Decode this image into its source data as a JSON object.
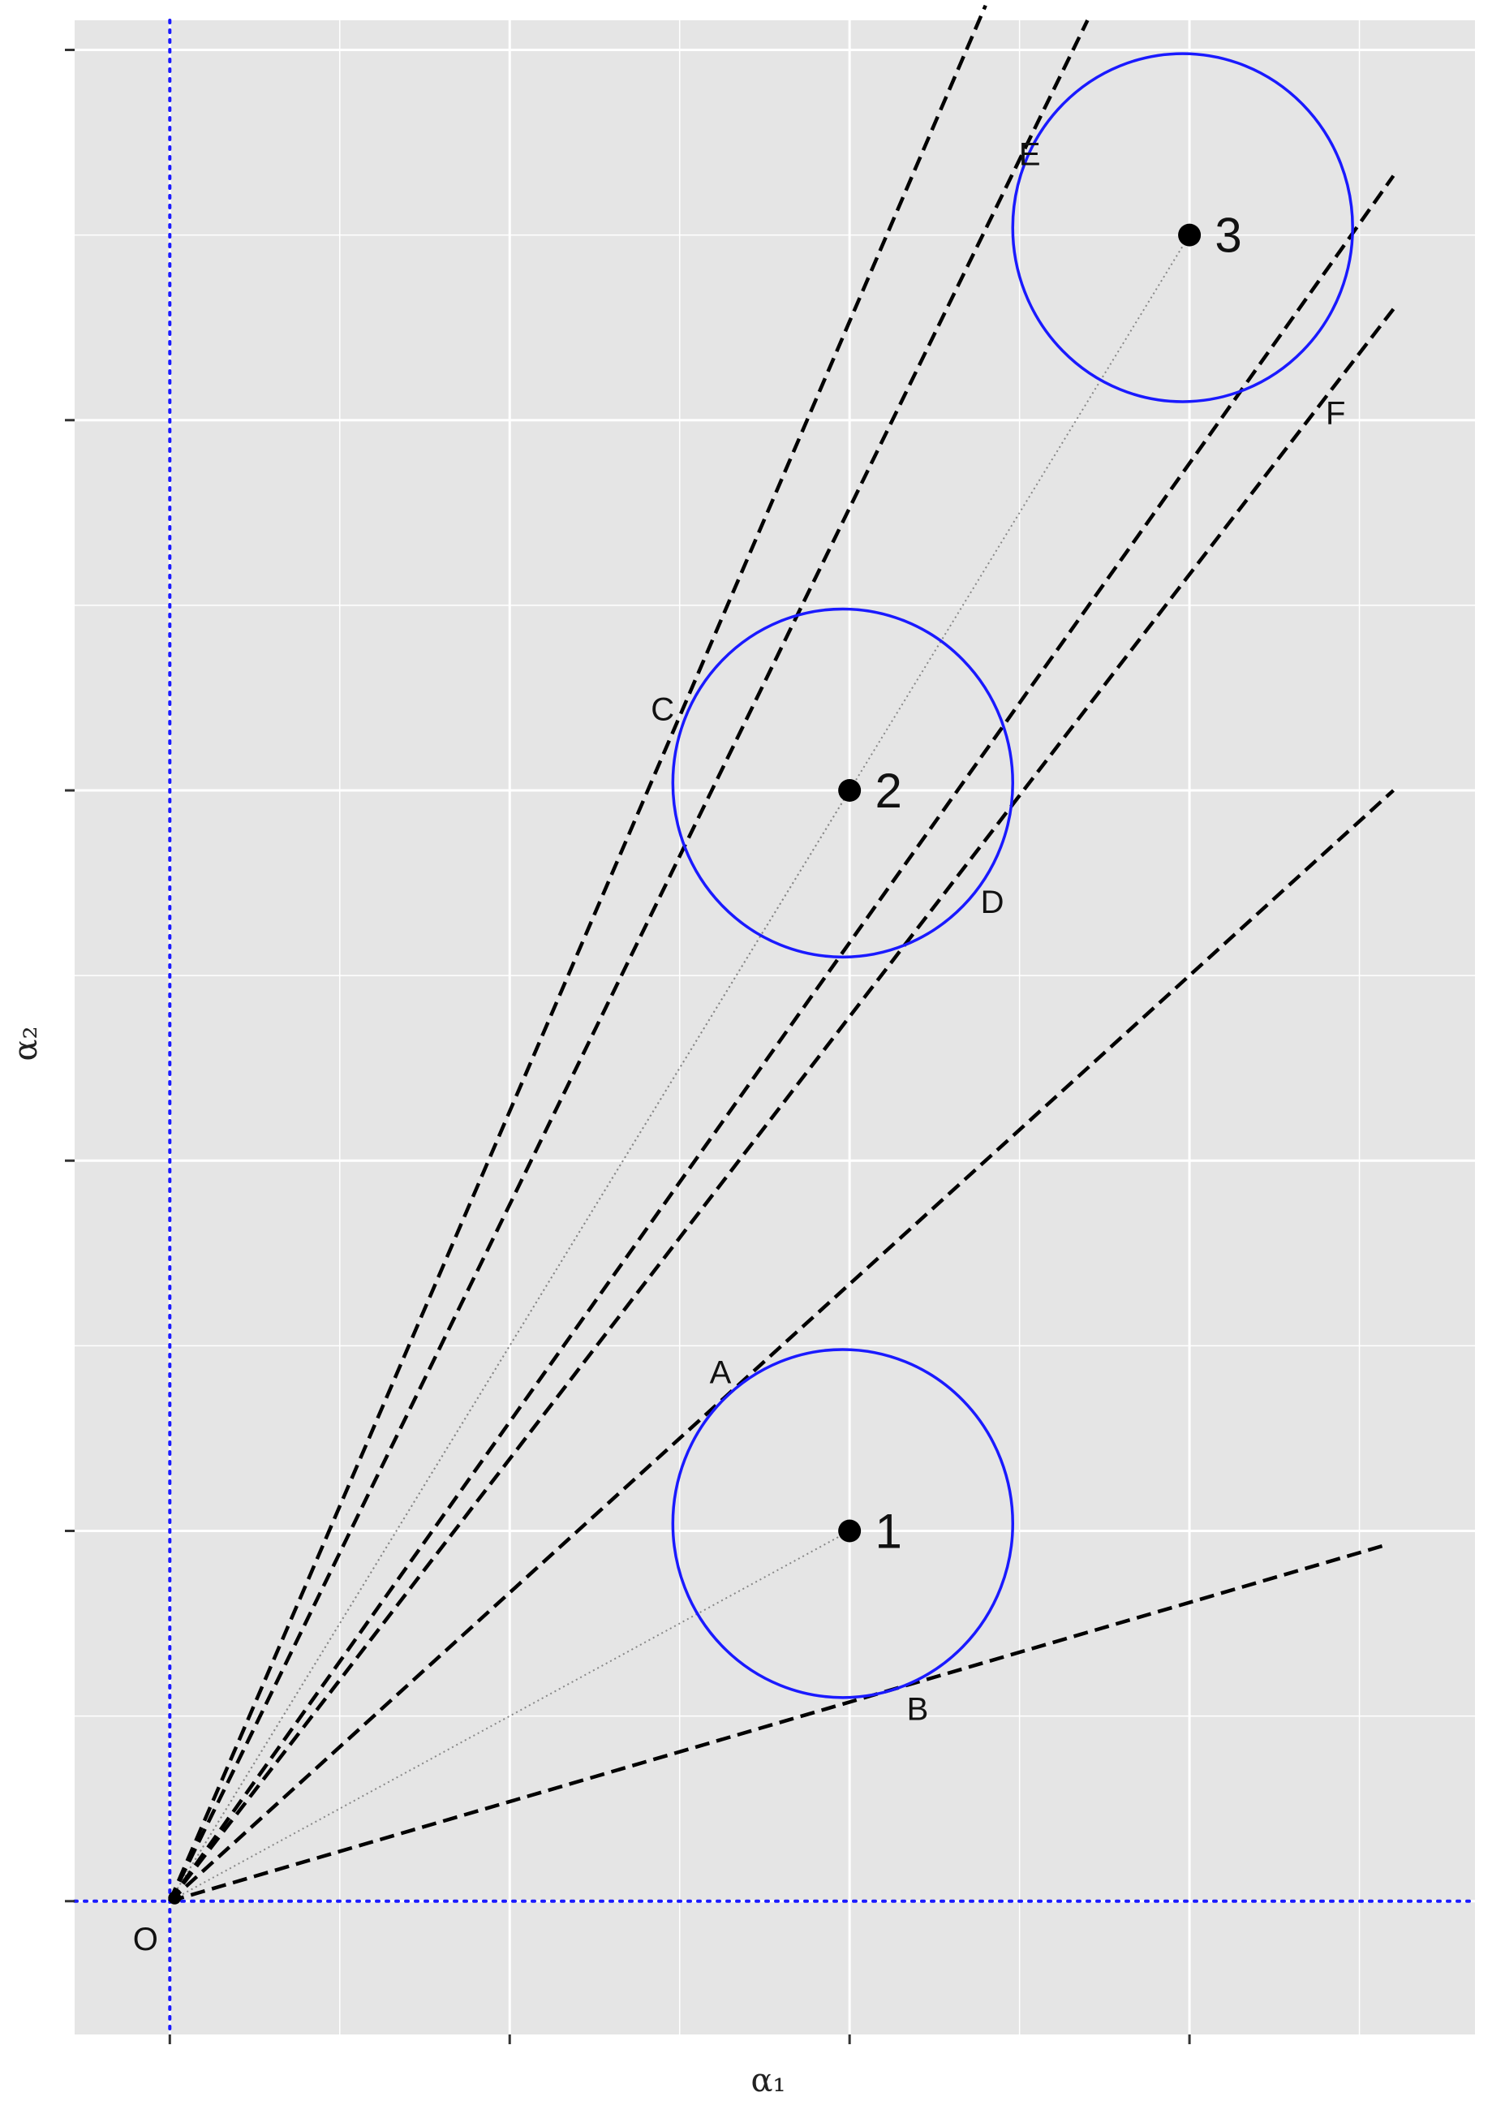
{
  "chart_data": {
    "type": "scatter",
    "title": "",
    "xlabel": "α₁",
    "ylabel": "α₂",
    "xlim": [
      -0.28,
      3.84
    ],
    "ylim": [
      -0.36,
      5.08
    ],
    "xticks": [
      0,
      1,
      2,
      3
    ],
    "yticks": [
      0,
      1,
      2,
      3,
      4,
      5
    ],
    "grid": true,
    "background": "#e5e5e5",
    "grid_color": "#ffffff",
    "origin": {
      "x": 0,
      "y": 0,
      "label": "O"
    },
    "reference_lines": [
      {
        "name": "x-axis",
        "orientation": "horizontal",
        "value": 0,
        "style": "dotted",
        "color": "#1a1aff"
      },
      {
        "name": "y-axis",
        "orientation": "vertical",
        "value": 0,
        "style": "dotted",
        "color": "#1a1aff"
      }
    ],
    "points": [
      {
        "label": "1",
        "x": 2.0,
        "y": 1.0
      },
      {
        "label": "2",
        "x": 2.0,
        "y": 3.0
      },
      {
        "label": "3",
        "x": 3.0,
        "y": 4.5
      }
    ],
    "circles": [
      {
        "cx": 1.98,
        "cy": 1.02,
        "rx": 0.5,
        "ry": 0.47,
        "color": "#1a1aff"
      },
      {
        "cx": 1.98,
        "cy": 3.02,
        "rx": 0.5,
        "ry": 0.47,
        "color": "#1a1aff"
      },
      {
        "cx": 2.98,
        "cy": 4.52,
        "rx": 0.5,
        "ry": 0.47,
        "color": "#1a1aff"
      }
    ],
    "rays": [
      {
        "x2": 2.0,
        "y2": 1.0,
        "style": "dotted",
        "color": "#888888"
      },
      {
        "x2": 2.0,
        "y2": 3.0,
        "style": "dotted",
        "color": "#888888"
      },
      {
        "x2": 3.0,
        "y2": 4.5,
        "style": "dotted",
        "color": "#888888"
      }
    ],
    "tangent_lines": [
      {
        "label": "A",
        "x2": 3.6,
        "y2": 3.0,
        "label_x": 1.62,
        "label_y": 1.43
      },
      {
        "label": "B",
        "x2": 3.57,
        "y2": 0.96,
        "label_x": 2.2,
        "label_y": 0.52
      },
      {
        "label": "C",
        "x2": 2.4,
        "y2": 5.12,
        "label_x": 1.45,
        "label_y": 3.22
      },
      {
        "label": "D",
        "x2": 3.6,
        "y2": 4.3,
        "label_x": 2.42,
        "label_y": 2.7
      },
      {
        "label": "E",
        "x2": 2.7,
        "y2": 5.08,
        "label_x": 2.53,
        "label_y": 4.72
      },
      {
        "label": "F",
        "x2": 3.6,
        "y2": 4.66,
        "label_x": 3.43,
        "label_y": 4.02
      }
    ]
  }
}
